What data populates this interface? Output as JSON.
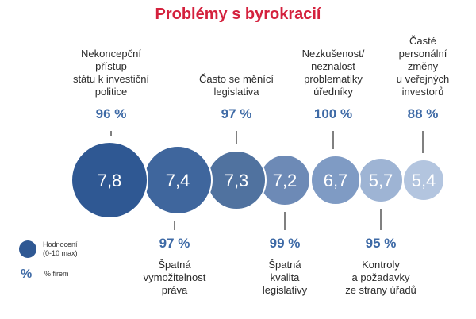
{
  "chart_data": {
    "type": "bubble",
    "title": "Problémy s byrokracií",
    "items": [
      {
        "label_lines": [
          "Nekoncepční",
          "přístup",
          "státu k investiční",
          "politice"
        ],
        "value": "7,8",
        "percent": "96 %",
        "color": "#2f5893",
        "position": "top"
      },
      {
        "label_lines": [
          "Špatná",
          "vymožitelnost",
          "práva"
        ],
        "value": "7,4",
        "percent": "97 %",
        "color": "#3f669d",
        "position": "bottom"
      },
      {
        "label_lines": [
          "Často se měnící",
          "legislativa"
        ],
        "value": "7,3",
        "percent": "97 %",
        "color": "#50729f",
        "position": "top"
      },
      {
        "label_lines": [
          "Špatná",
          "kvalita",
          "legislativy"
        ],
        "value": "7,2",
        "percent": "99 %",
        "color": "#6d8ab6",
        "position": "bottom"
      },
      {
        "label_lines": [
          "Nezkušenost/",
          "neznalost",
          "problematiky",
          "úředníky"
        ],
        "value": "6,7",
        "percent": "100 %",
        "color": "#7f9bc4",
        "position": "top"
      },
      {
        "label_lines": [
          "Kontroly",
          "a požadavky",
          "ze strany úřadů"
        ],
        "value": "5,7",
        "percent": "95 %",
        "color": "#9eb4d4",
        "position": "bottom"
      },
      {
        "label_lines": [
          "Časté",
          "personální",
          "změny",
          "u veřejných",
          "investorů"
        ],
        "value": "5,4",
        "percent": "88 %",
        "color": "#b3c5df",
        "position": "top"
      }
    ],
    "legend": {
      "circle_label_lines": [
        "Hodnocení",
        "(0-10 max)"
      ],
      "percent_symbol": "%",
      "percent_label": "% firem",
      "circle_color": "#2f5893"
    }
  }
}
